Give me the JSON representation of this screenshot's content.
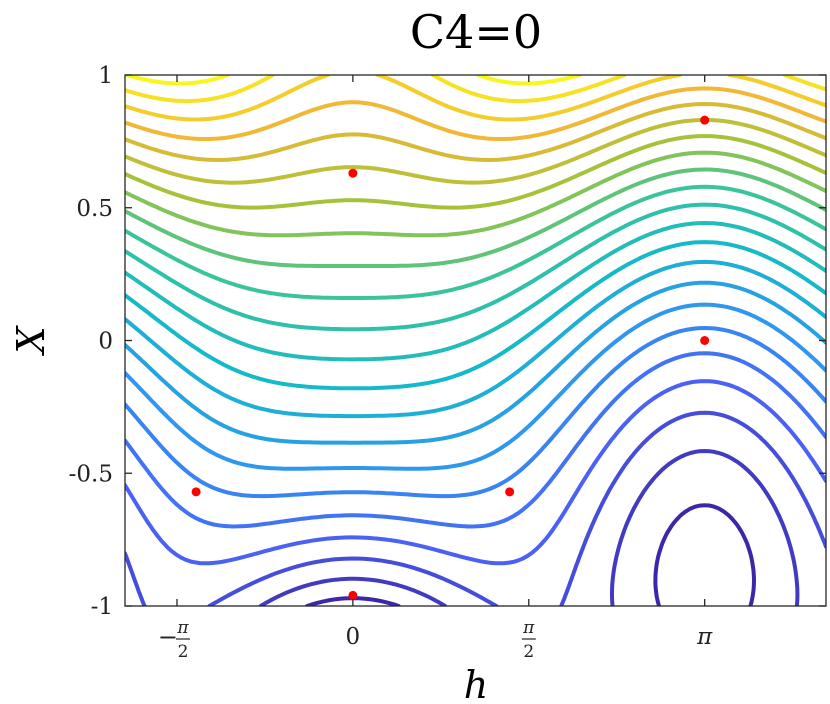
{
  "chart_data": {
    "type": "contour",
    "title": "C4=0",
    "xlabel": "h",
    "ylabel": "X",
    "xlim": [
      -2.035,
      4.225
    ],
    "ylim": [
      -1,
      1
    ],
    "x_ticks": [
      {
        "value": -1.5708,
        "label": "−π/2",
        "sign": "−",
        "num": "π",
        "den": "2"
      },
      {
        "value": 0,
        "label": "0"
      },
      {
        "value": 1.5708,
        "label": "π/2",
        "sign": "",
        "num": "π",
        "den": "2"
      },
      {
        "value": 3.1416,
        "label": "π"
      }
    ],
    "y_ticks": [
      {
        "value": -1,
        "label": "-1"
      },
      {
        "value": -0.5,
        "label": "-0.5"
      },
      {
        "value": 0,
        "label": "0"
      },
      {
        "value": 0.5,
        "label": "0.5"
      },
      {
        "value": 1,
        "label": "1"
      }
    ],
    "grid": false,
    "colormap": [
      "#3e26a8",
      "#4a61f3",
      "#2f97f0",
      "#15b9c9",
      "#3bc49b",
      "#a6c23a",
      "#f0b836",
      "#f9f619"
    ],
    "contour_levels": 22,
    "critical_points": [
      {
        "x": 0,
        "y": 0.63
      },
      {
        "x": 3.1416,
        "y": 0.83
      },
      {
        "x": 3.1416,
        "y": 0
      },
      {
        "x": -1.4,
        "y": -0.57
      },
      {
        "x": 1.4,
        "y": -0.57
      },
      {
        "x": 0,
        "y": -0.96
      }
    ],
    "point_color": "#ff0000"
  }
}
